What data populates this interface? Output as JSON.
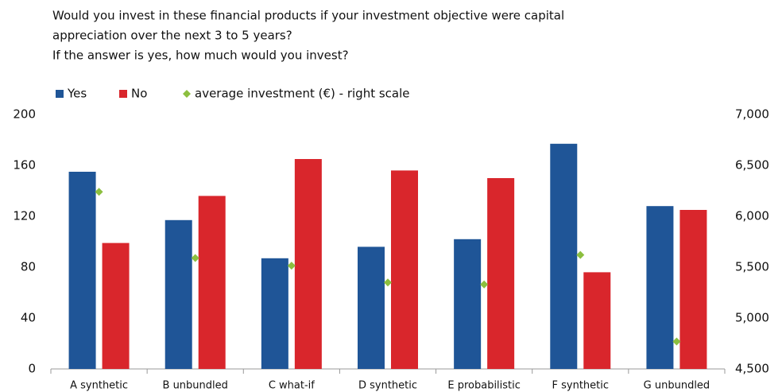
{
  "chart_data": {
    "type": "bar",
    "title": [
      "Would you invest in these financial products if your investment objective were capital",
      "appreciation over the next 3 to 5 years?",
      "If the answer is yes, how much would you invest?"
    ],
    "categories": [
      "A synthetic",
      "B unbundled",
      "C what-if",
      "D synthetic",
      "E probabilistic",
      "F synthetic",
      "G unbundled"
    ],
    "series": [
      {
        "name": "Yes",
        "color": "#1f5597",
        "values": [
          155,
          117,
          87,
          96,
          102,
          177,
          128
        ]
      },
      {
        "name": "No",
        "color": "#d9262c",
        "values": [
          99,
          136,
          165,
          156,
          150,
          76,
          125
        ]
      },
      {
        "name": "average investment (€) - right scale",
        "color": "#8cbf3f",
        "axis": "y2",
        "type": "scatter",
        "values": [
          6240,
          5590,
          5515,
          5350,
          5330,
          5620,
          4770
        ]
      }
    ],
    "ylim": [
      0,
      200
    ],
    "yticks": [
      0,
      40,
      80,
      120,
      160,
      200
    ],
    "y2lim": [
      4500,
      7000
    ],
    "y2ticks": [
      {
        "value": 4500,
        "label": "4,500"
      },
      {
        "value": 5000,
        "label": "5,000"
      },
      {
        "value": 5500,
        "label": "5,500"
      },
      {
        "value": 6000,
        "label": "6,000"
      },
      {
        "value": 6500,
        "label": "6,500"
      },
      {
        "value": 7000,
        "label": "7,000"
      }
    ],
    "legend": "top"
  }
}
